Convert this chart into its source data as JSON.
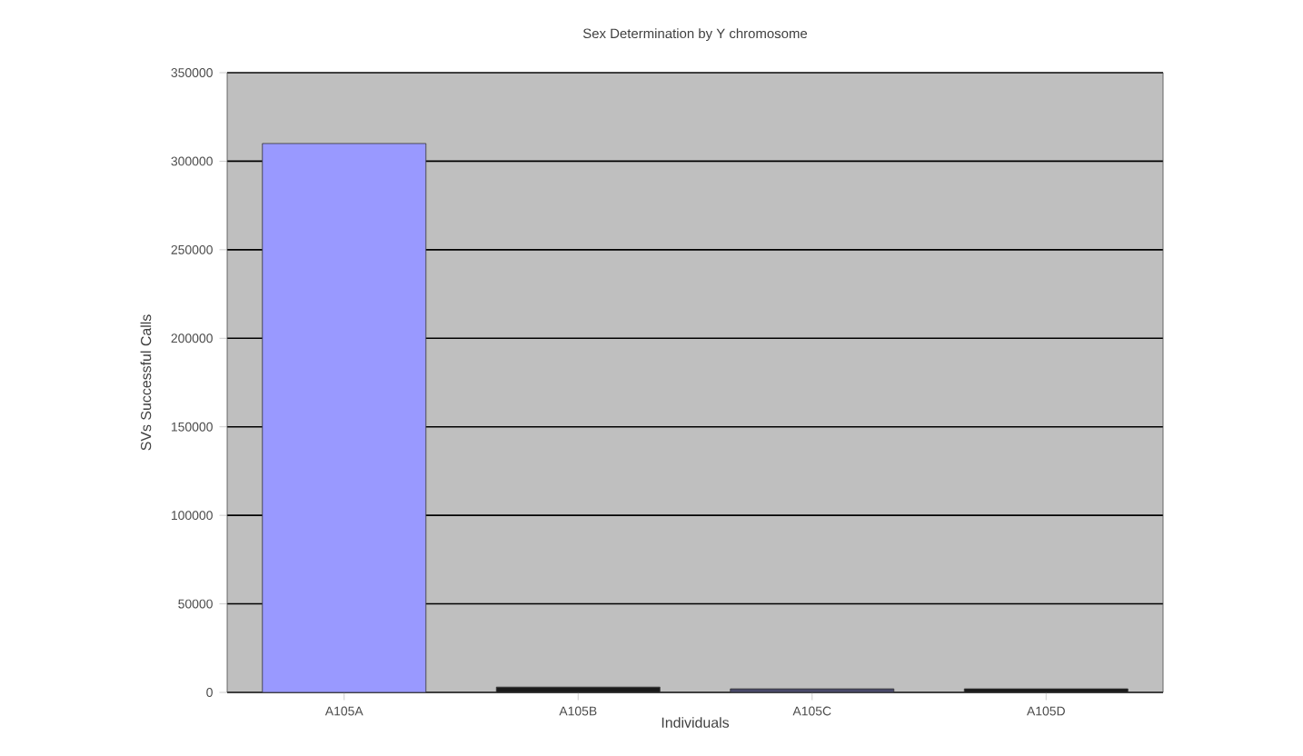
{
  "chart_data": {
    "type": "bar",
    "title": "Sex Determination by Y chromosome",
    "xlabel": "Individuals",
    "ylabel": "SVs Successful Calls",
    "categories": [
      "A105A",
      "A105B",
      "A105C",
      "A105D"
    ],
    "values": [
      310000,
      3000,
      2000,
      2000
    ],
    "colors": [
      "#9999ff",
      "#1a1a1a",
      "#4a4a6a",
      "#1a1a1a"
    ],
    "ylim": [
      0,
      350000
    ],
    "yticks": [
      0,
      50000,
      100000,
      150000,
      200000,
      250000,
      300000,
      350000
    ],
    "grid": "y"
  }
}
